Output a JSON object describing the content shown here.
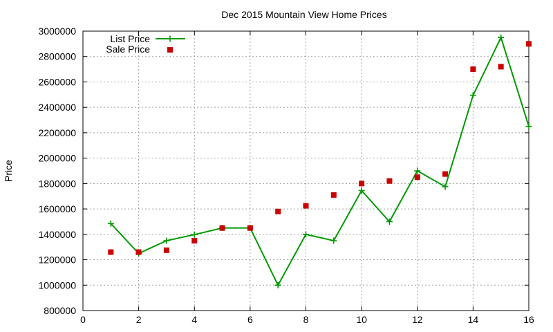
{
  "chart_data": {
    "type": "line",
    "title": "Dec 2015 Mountain View Home Prices",
    "xlabel": "",
    "ylabel": "Price",
    "xlim": [
      0,
      16
    ],
    "ylim": [
      800000,
      3000000
    ],
    "xticks": [
      0,
      2,
      4,
      6,
      8,
      10,
      12,
      14,
      16
    ],
    "yticks": [
      800000,
      1000000,
      1200000,
      1400000,
      1600000,
      1800000,
      2000000,
      2200000,
      2400000,
      2600000,
      2800000,
      3000000
    ],
    "xtick_labels": [
      "0",
      "2",
      "4",
      "6",
      "8",
      "10",
      "12",
      "14",
      "16"
    ],
    "ytick_labels": [
      "800000",
      "1000000",
      "1200000",
      "1400000",
      "1600000",
      "1800000",
      "2000000",
      "2200000",
      "2400000",
      "2600000",
      "2800000",
      "3000000"
    ],
    "grid": true,
    "legend_position": "top-left",
    "series": [
      {
        "name": "List Price",
        "style": "line-with-plus-markers",
        "color": "#009900",
        "x": [
          1,
          2,
          3,
          4,
          5,
          6,
          7,
          8,
          9,
          10,
          11,
          12,
          13,
          14,
          15,
          16
        ],
        "values": [
          1485000,
          1250000,
          1350000,
          1398000,
          1450000,
          1450000,
          1000000,
          1400000,
          1350000,
          1745000,
          1500000,
          1900000,
          1775000,
          2495000,
          2950000,
          2250000
        ]
      },
      {
        "name": "Sale Price",
        "style": "square-points",
        "color": "#cc0000",
        "x": [
          1,
          2,
          3,
          4,
          5,
          6,
          7,
          8,
          9,
          10,
          11,
          12,
          13,
          14,
          15,
          16
        ],
        "values": [
          1260000,
          1260000,
          1275000,
          1350000,
          1450000,
          1450000,
          1580000,
          1625000,
          1710000,
          1800000,
          1820000,
          1850000,
          1875000,
          2700000,
          2720000,
          2900000
        ]
      }
    ]
  }
}
